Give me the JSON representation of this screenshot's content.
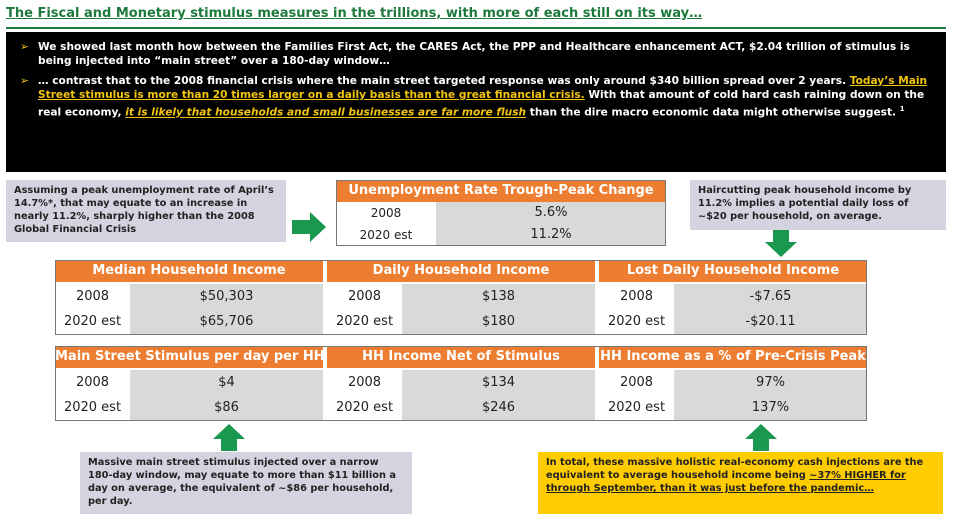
{
  "title": "The Fiscal and Monetary stimulus measures in the trillions, with more of each still on its way…",
  "bullets": {
    "b1_pre": "We showed ",
    "b1_bold": "last month",
    "b1_post": " how between the Families First Act, the CARES Act, the PPP and Healthcare enhancement ACT, $2.04 trillion of stimulus is being injected into “main street” over a 180-day window…",
    "b2_pre": "… contrast that to the 2008 financial crisis where the main street targeted response was only around $340 billion spread over 2 years. ",
    "b2_u": "Today’s Main Street stimulus is more than 20 times larger on a daily basis than the great financial crisis.",
    "b2_mid": " With that amount of cold hard cash raining down on the real economy, ",
    "b2_ui": "it is likely that households and small businesses are far more flush",
    "b2_post": " than the dire macro economic data might otherwise suggest. ",
    "b2_sup": "1"
  },
  "notes": {
    "unemployment": "Assuming a peak unemployment rate of April’s 14.7%*, that may equate to an increase in nearly 11.2%, sharply higher than the 2008 Global Financial Crisis",
    "haircut": "Haircutting peak household income by 11.2% implies a potential daily loss of ~$20 per household, on average.",
    "stimulus": "Massive main street stimulus injected over a narrow 180-day window, may equate to more than $11 billion a day on average, the equivalent of ~$86 per household, per day.",
    "total_pre": "In total, these massive holistic real-economy cash injections are the equivalent to average household income being ",
    "total_u": "~37% HIGHER for through September, than it was just before the pandemic…"
  },
  "tables": {
    "unemp": {
      "header": "Unemployment Rate Trough-Peak Change",
      "r1_label": "2008",
      "r1_val": "5.6%",
      "r2_label": "2020 est",
      "r2_val": "11.2%"
    },
    "median": {
      "header": "Median Household Income",
      "r1_label": "2008",
      "r1_val": "$50,303",
      "r2_label": "2020 est",
      "r2_val": "$65,706"
    },
    "daily": {
      "header": "Daily Household Income",
      "r1_label": "2008",
      "r1_val": "$138",
      "r2_label": "2020 est",
      "r2_val": "$180"
    },
    "lost": {
      "header": "Lost Daily Household Income",
      "r1_label": "2008",
      "r1_val": "-$7.65",
      "r2_label": "2020 est",
      "r2_val": "-$20.11"
    },
    "stim": {
      "header": "Main Street Stimulus per day per HH",
      "r1_label": "2008",
      "r1_val": "$4",
      "r2_label": "2020 est",
      "r2_val": "$86"
    },
    "net": {
      "header": "HH Income Net of Stimulus",
      "r1_label": "2008",
      "r1_val": "$134",
      "r2_label": "2020 est",
      "r2_val": "$246"
    },
    "pct": {
      "header": "HH Income as a % of Pre-Crisis Peak",
      "r1_label": "2008",
      "r1_val": "97%",
      "r2_label": "2020 est",
      "r2_val": "137%"
    }
  },
  "colors": {
    "accent": "#ed7d31",
    "title_green": "#1e7a3c",
    "arrow_green": "#1a9850",
    "highlight": "#f1c40f"
  }
}
